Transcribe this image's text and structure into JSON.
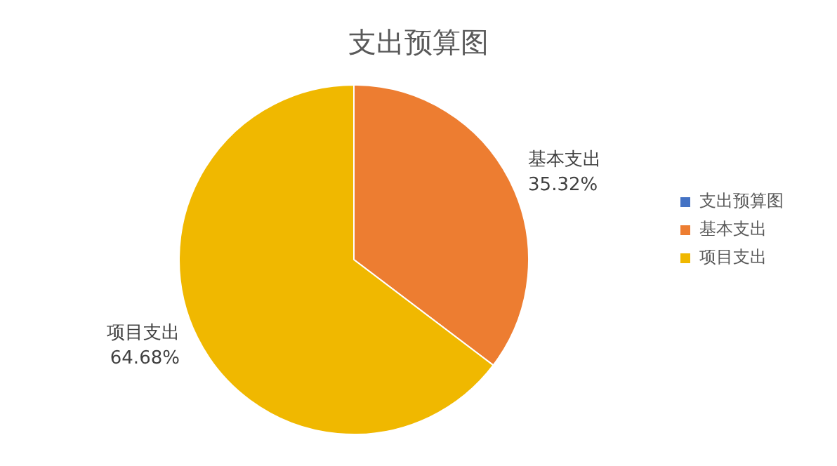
{
  "chart_data": {
    "type": "pie",
    "title": "支出预算图",
    "categories": [
      "支出预算图",
      "基本支出",
      "项目支出"
    ],
    "values": [
      0,
      35.32,
      64.68
    ],
    "colors": [
      "#4472c4",
      "#ed7d31",
      "#f0b800"
    ],
    "value_labels": [
      null,
      "35.32%",
      "64.68%"
    ],
    "legend": "right"
  }
}
